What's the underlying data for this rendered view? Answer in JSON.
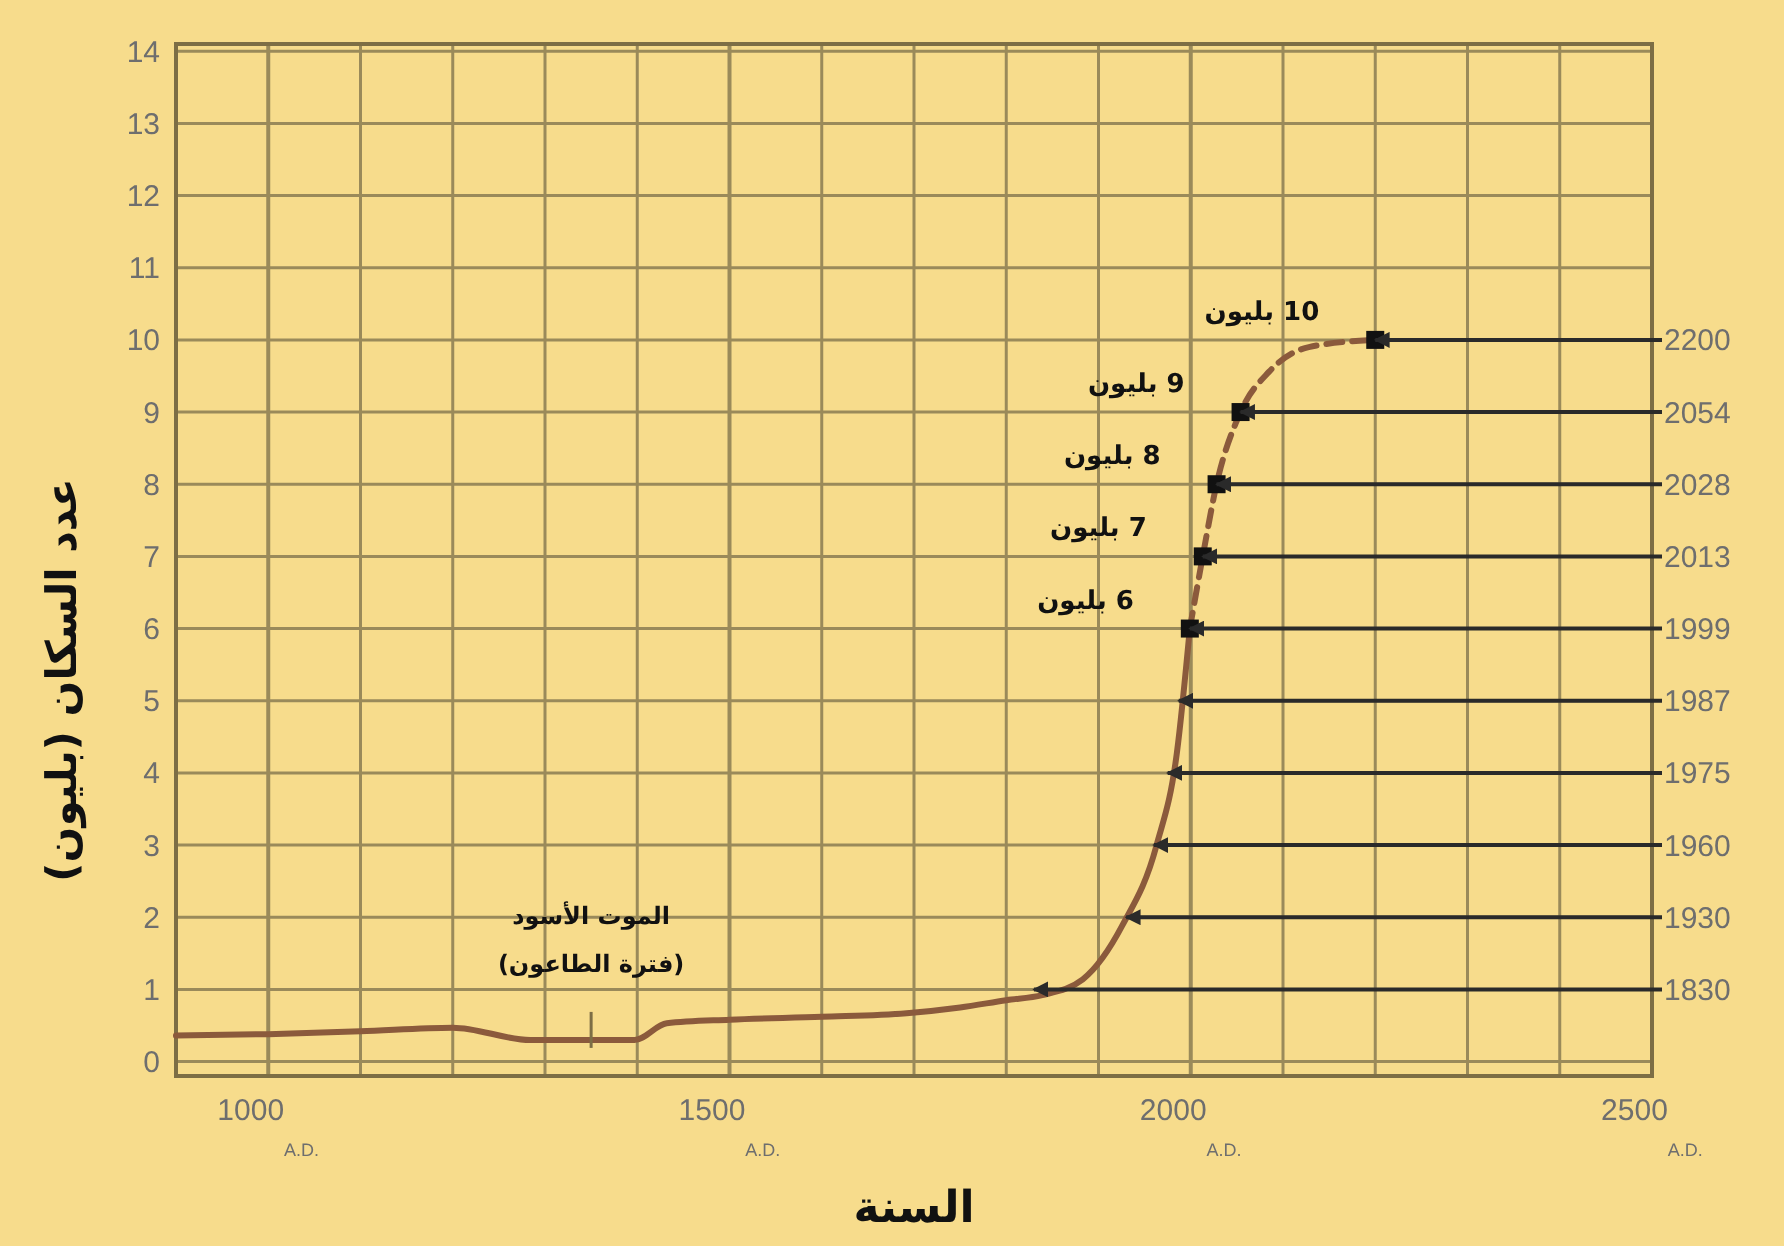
{
  "chart_data": {
    "type": "line",
    "xlabel": "السنة",
    "ylabel": "عدد السكان (بليون)",
    "xlim": [
      900,
      2500
    ],
    "ylim": [
      -0.2,
      14.1
    ],
    "xticks": [
      {
        "value": 1000,
        "label": "1000$_{A.D.}$"
      },
      {
        "value": 1100,
        "label": null
      },
      {
        "value": 1200,
        "label": null
      },
      {
        "value": 1300,
        "label": null
      },
      {
        "value": 1400,
        "label": null
      },
      {
        "value": 1500,
        "label": "1500$_{A.D.}$"
      },
      {
        "value": 1600,
        "label": null
      },
      {
        "value": 1700,
        "label": null
      },
      {
        "value": 1800,
        "label": null
      },
      {
        "value": 1900,
        "label": null
      },
      {
        "value": 2000,
        "label": "2000$_{A.D.}$"
      },
      {
        "value": 2100,
        "label": null
      },
      {
        "value": 2200,
        "label": null
      },
      {
        "value": 2300,
        "label": null
      },
      {
        "value": 2400,
        "label": null
      },
      {
        "value": 2500,
        "label": "2500$_{A.D.}$"
      }
    ],
    "yticks": [
      0,
      1,
      2,
      3,
      4,
      5,
      6,
      7,
      8,
      9,
      10,
      11,
      12,
      13,
      14
    ],
    "grid": true,
    "series": [
      {
        "color": "#8b5a3c",
        "line_style": "solid",
        "x": [
          900,
          1000,
          1100,
          1200,
          1284,
          1397,
          1432,
          1500,
          1600,
          1692,
          1750,
          1800,
          1839,
          1883,
          1926,
          1963,
          1985,
          1999
        ],
        "values": [
          0.36,
          0.38,
          0.42,
          0.47,
          0.3,
          0.3,
          0.53,
          0.58,
          0.62,
          0.67,
          0.75,
          0.85,
          0.92,
          1.14,
          1.89,
          3.0,
          4.28,
          6.0
        ]
      },
      {
        "color": "#8b5a3c",
        "line_style": "dashed",
        "x": [
          1999,
          2013,
          2028,
          2054,
          2085,
          2128,
          2200
        ],
        "values": [
          6.0,
          7.0,
          8.0,
          9.0,
          9.56,
          9.9,
          10.0
        ]
      },
      {
        "type": "scatter",
        "color": "#111111",
        "marker": "square",
        "x": [
          1999,
          2013,
          2028,
          2054,
          2200
        ],
        "values": [
          6,
          7,
          8,
          9,
          10
        ]
      }
    ],
    "annotations": [
      {
        "text": "1830",
        "x": 1830,
        "y": 1
      },
      {
        "text": "1930",
        "x": 1930,
        "y": 2
      },
      {
        "text": "1960",
        "x": 1960,
        "y": 3
      },
      {
        "text": "1975",
        "x": 1975,
        "y": 4
      },
      {
        "text": "1987",
        "x": 1987,
        "y": 5
      },
      {
        "text": "1999",
        "x": 1999,
        "y": 6
      },
      {
        "text": "2013",
        "x": 2013,
        "y": 7
      },
      {
        "text": "2028",
        "x": 2028,
        "y": 8
      },
      {
        "text": "2054",
        "x": 2054,
        "y": 9
      },
      {
        "text": "2200",
        "x": 2200,
        "y": 10
      },
      {
        "text": "6 بليون",
        "x": 1999,
        "y": 6
      },
      {
        "text": "7 بليون",
        "x": 2013,
        "y": 7
      },
      {
        "text": "8 بليون",
        "x": 2028,
        "y": 8
      },
      {
        "text": "9 بليون",
        "x": 2054,
        "y": 9
      },
      {
        "text": "10 بليون",
        "x": 2200,
        "y": 10
      },
      {
        "text": "الموت الأسود\n(فترة الطاعون)",
        "x": 1350,
        "y": 0.3
      }
    ]
  }
}
